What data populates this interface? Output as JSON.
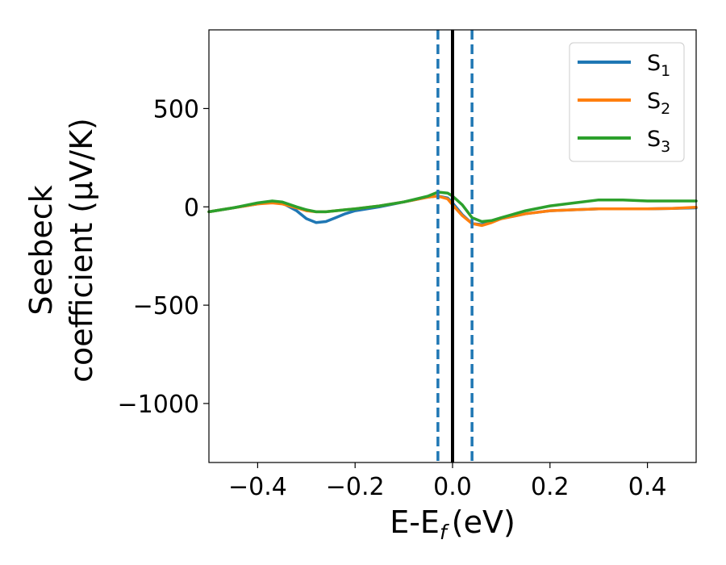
{
  "chart_data": {
    "type": "line",
    "xlabel": "E-E",
    "xlabel_sub": "f",
    "xlabel_unit": "(eV)",
    "ylabel_line1": "Seebeck",
    "ylabel_line2": "coefficient  (μV/K)",
    "xlim": [
      -0.5,
      0.5
    ],
    "ylim": [
      -1300,
      900
    ],
    "x_ticks": [
      -0.4,
      -0.2,
      0.0,
      0.2,
      0.4
    ],
    "x_tick_labels": [
      "−0.4",
      "−0.2",
      "0.0",
      "0.2",
      "0.4"
    ],
    "y_ticks": [
      500,
      0,
      -500,
      -1000
    ],
    "y_tick_labels": [
      "500",
      "0",
      "−500",
      "−1000"
    ],
    "grid": false,
    "legend_position": "top-right",
    "series": [
      {
        "name": "S",
        "name_sub": "1",
        "color": "#1f77b4",
        "x": [
          -0.5,
          -0.45,
          -0.4,
          -0.37,
          -0.35,
          -0.32,
          -0.3,
          -0.28,
          -0.26,
          -0.24,
          -0.22,
          -0.2,
          -0.15,
          -0.1,
          -0.05,
          -0.03,
          -0.01,
          0.0,
          0.02,
          0.04,
          0.06,
          0.08,
          0.1,
          0.15,
          0.2,
          0.25,
          0.3,
          0.35,
          0.4,
          0.45,
          0.5
        ],
        "y": [
          -25,
          -5,
          15,
          25,
          20,
          -20,
          -60,
          -80,
          -75,
          -55,
          -35,
          -20,
          0,
          25,
          50,
          55,
          45,
          20,
          -40,
          -85,
          -90,
          -75,
          -60,
          -35,
          -20,
          -15,
          -10,
          -10,
          -10,
          -8,
          -5
        ]
      },
      {
        "name": "S",
        "name_sub": "2",
        "color": "#ff7f0e",
        "x": [
          -0.5,
          -0.45,
          -0.4,
          -0.37,
          -0.35,
          -0.32,
          -0.3,
          -0.28,
          -0.26,
          -0.24,
          -0.22,
          -0.2,
          -0.15,
          -0.1,
          -0.05,
          -0.03,
          -0.01,
          0.0,
          0.02,
          0.04,
          0.06,
          0.08,
          0.1,
          0.15,
          0.2,
          0.25,
          0.3,
          0.35,
          0.4,
          0.45,
          0.5
        ],
        "y": [
          -25,
          -5,
          15,
          20,
          15,
          -5,
          -20,
          -25,
          -25,
          -20,
          -15,
          -10,
          5,
          25,
          50,
          55,
          40,
          10,
          -45,
          -85,
          -95,
          -80,
          -60,
          -35,
          -20,
          -15,
          -10,
          -10,
          -10,
          -8,
          -2
        ]
      },
      {
        "name": "S",
        "name_sub": "3",
        "color": "#2ca02c",
        "x": [
          -0.5,
          -0.45,
          -0.4,
          -0.37,
          -0.35,
          -0.32,
          -0.3,
          -0.28,
          -0.26,
          -0.24,
          -0.22,
          -0.2,
          -0.15,
          -0.1,
          -0.05,
          -0.03,
          -0.01,
          0.0,
          0.02,
          0.04,
          0.06,
          0.08,
          0.1,
          0.15,
          0.2,
          0.25,
          0.3,
          0.35,
          0.4,
          0.45,
          0.5
        ],
        "y": [
          -25,
          -5,
          20,
          30,
          25,
          0,
          -15,
          -25,
          -25,
          -20,
          -15,
          -10,
          5,
          25,
          55,
          75,
          70,
          55,
          10,
          -55,
          -75,
          -70,
          -55,
          -20,
          5,
          20,
          35,
          35,
          30,
          30,
          30
        ]
      }
    ],
    "vertical_lines": [
      {
        "x": -0.03,
        "style": "dashed",
        "color": "#1f77b4"
      },
      {
        "x": 0.0,
        "style": "solid",
        "color": "#000000"
      },
      {
        "x": 0.04,
        "style": "dashed",
        "color": "#1f77b4"
      }
    ]
  }
}
